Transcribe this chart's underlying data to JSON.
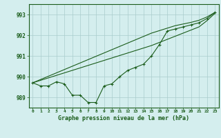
{
  "title": "",
  "xlabel": "Graphe pression niveau de la mer (hPa)",
  "background_color": "#d4eeee",
  "grid_color": "#aacccc",
  "line_color": "#1a5c1a",
  "x_ticks": [
    0,
    1,
    2,
    3,
    4,
    5,
    6,
    7,
    8,
    9,
    10,
    11,
    12,
    13,
    14,
    15,
    16,
    17,
    18,
    19,
    20,
    21,
    22,
    23
  ],
  "ylim": [
    988.5,
    993.5
  ],
  "yticks": [
    989,
    990,
    991,
    992,
    993
  ],
  "series_main": [
    989.7,
    989.55,
    989.55,
    989.75,
    989.65,
    989.1,
    989.1,
    988.75,
    988.75,
    989.55,
    989.65,
    990.0,
    990.3,
    990.45,
    990.6,
    991.0,
    991.55,
    992.2,
    992.3,
    992.4,
    992.5,
    992.6,
    992.8,
    993.1
  ],
  "series_upper1": [
    989.7,
    989.86,
    990.02,
    990.18,
    990.34,
    990.5,
    990.66,
    990.82,
    990.98,
    991.14,
    991.3,
    991.46,
    991.62,
    991.78,
    991.94,
    992.1,
    992.22,
    992.34,
    992.46,
    992.54,
    992.62,
    992.72,
    992.88,
    993.1
  ],
  "series_upper2": [
    989.7,
    989.82,
    989.94,
    990.06,
    990.18,
    990.3,
    990.42,
    990.54,
    990.66,
    990.78,
    990.9,
    991.02,
    991.14,
    991.26,
    991.38,
    991.5,
    991.65,
    991.8,
    991.95,
    992.1,
    992.25,
    992.4,
    992.7,
    993.05
  ],
  "marker": "+",
  "markersize": 3,
  "linewidth": 0.8
}
